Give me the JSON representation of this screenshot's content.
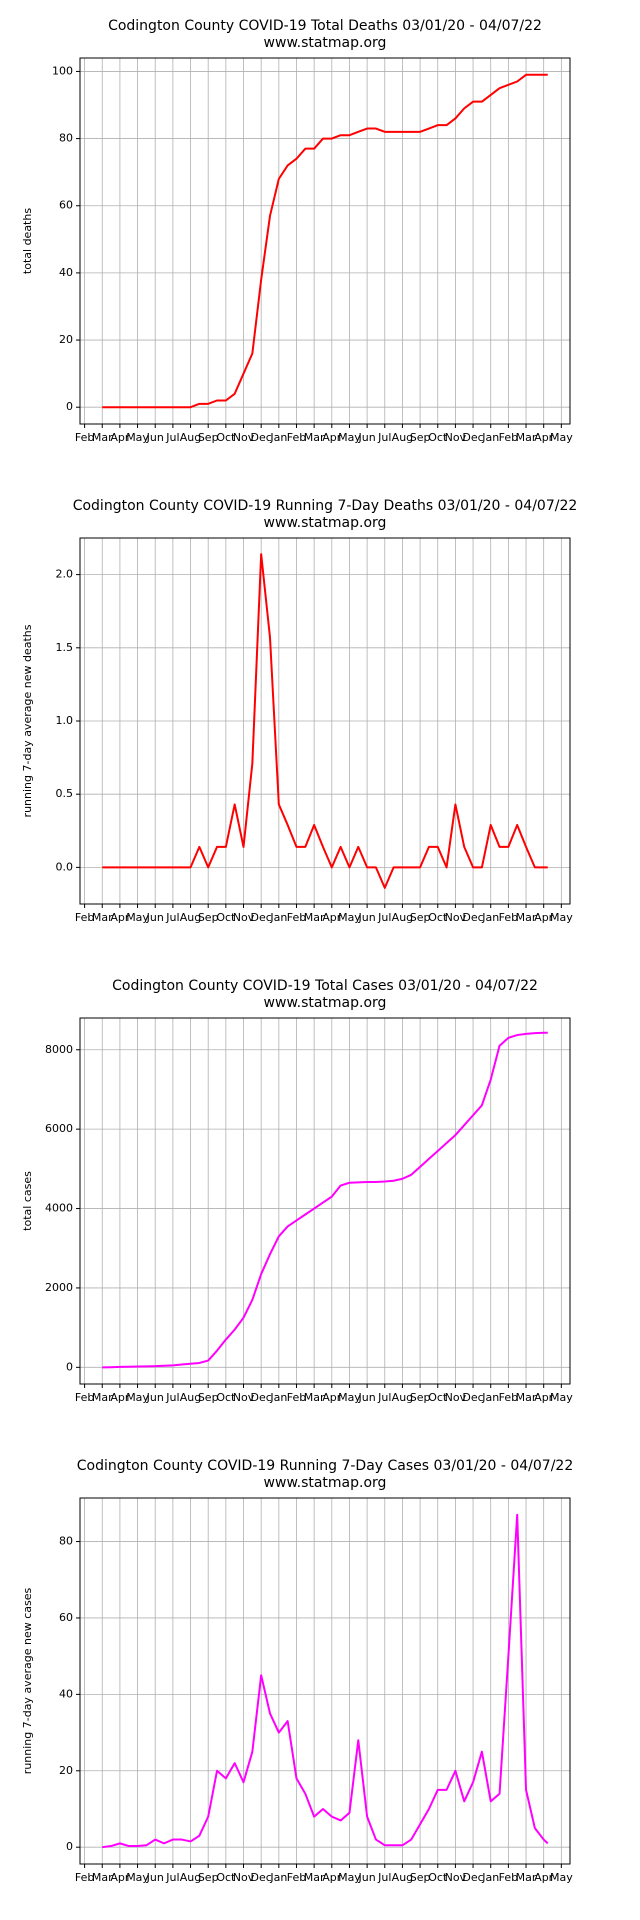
{
  "chart_data": [
    {
      "type": "line",
      "title": "Codington County COVID-19 Total Deaths 03/01/20 - 04/07/22",
      "subtitle": "www.statmap.org",
      "y_label": "total deaths",
      "grid": true,
      "xlim": [
        -0.26,
        27.49
      ],
      "ylim": [
        -5,
        104
      ],
      "yticks": [
        0,
        20,
        40,
        60,
        80,
        100
      ],
      "xticks": [
        {
          "value": 0,
          "label": "Feb"
        },
        {
          "value": 1,
          "label": "Mar"
        },
        {
          "value": 2,
          "label": "Apr"
        },
        {
          "value": 3,
          "label": "May"
        },
        {
          "value": 4,
          "label": "Jun"
        },
        {
          "value": 5,
          "label": "Jul"
        },
        {
          "value": 6,
          "label": "Aug"
        },
        {
          "value": 7,
          "label": "Sep"
        },
        {
          "value": 8,
          "label": "Oct"
        },
        {
          "value": 9,
          "label": "Nov"
        },
        {
          "value": 10,
          "label": "Dec"
        },
        {
          "value": 11,
          "label": "Jan"
        },
        {
          "value": 12,
          "label": "Feb"
        },
        {
          "value": 13,
          "label": "Mar"
        },
        {
          "value": 14,
          "label": "Apr"
        },
        {
          "value": 15,
          "label": "May"
        },
        {
          "value": 16,
          "label": "Jun"
        },
        {
          "value": 17,
          "label": "Jul"
        },
        {
          "value": 18,
          "label": "Aug"
        },
        {
          "value": 19,
          "label": "Sep"
        },
        {
          "value": 20,
          "label": "Oct"
        },
        {
          "value": 21,
          "label": "Nov"
        },
        {
          "value": 22,
          "label": "Dec"
        },
        {
          "value": 23,
          "label": "Jan"
        },
        {
          "value": 24,
          "label": "Feb"
        },
        {
          "value": 25,
          "label": "Mar"
        },
        {
          "value": 26,
          "label": "Apr"
        },
        {
          "value": 27,
          "label": "May"
        }
      ],
      "x": [
        1,
        1.5,
        2,
        2.5,
        3,
        3.5,
        4,
        4.5,
        5,
        5.5,
        6,
        6.5,
        7,
        7.5,
        8,
        8.5,
        9,
        9.5,
        10,
        10.5,
        11,
        11.5,
        12,
        12.5,
        13,
        13.5,
        14,
        14.5,
        15,
        15.5,
        16,
        16.5,
        17,
        17.5,
        18,
        18.5,
        19,
        19.5,
        20,
        20.5,
        21,
        21.5,
        22,
        22.5,
        23,
        23.5,
        24,
        24.5,
        25,
        25.5,
        26,
        26.23
      ],
      "color": "#ff0000",
      "values": [
        0,
        0,
        0,
        0,
        0,
        0,
        0,
        0,
        0,
        0,
        0,
        1,
        1,
        2,
        2,
        4,
        10,
        16,
        38,
        57,
        68,
        72,
        74,
        77,
        77,
        80,
        80,
        81,
        81,
        82,
        83,
        83,
        82,
        82,
        82,
        82,
        82,
        83,
        84,
        84,
        86,
        89,
        91,
        91,
        93,
        95,
        96,
        97,
        99,
        99,
        99,
        99
      ]
    },
    {
      "type": "line",
      "title": "Codington County COVID-19 Running 7-Day Deaths 03/01/20 - 04/07/22",
      "subtitle": "www.statmap.org",
      "y_label": "running 7-day average new deaths",
      "grid": true,
      "xlim": [
        -0.26,
        27.49
      ],
      "ylim": [
        -0.25,
        2.25
      ],
      "yticks": [
        {
          "value": 0,
          "label": "0.0"
        },
        {
          "value": 0.5,
          "label": "0.5"
        },
        {
          "value": 1,
          "label": "1.0"
        },
        {
          "value": 1.5,
          "label": "1.5"
        },
        {
          "value": 2,
          "label": "2.0"
        }
      ],
      "xticks": [
        {
          "value": 0,
          "label": "Feb"
        },
        {
          "value": 1,
          "label": "Mar"
        },
        {
          "value": 2,
          "label": "Apr"
        },
        {
          "value": 3,
          "label": "May"
        },
        {
          "value": 4,
          "label": "Jun"
        },
        {
          "value": 5,
          "label": "Jul"
        },
        {
          "value": 6,
          "label": "Aug"
        },
        {
          "value": 7,
          "label": "Sep"
        },
        {
          "value": 8,
          "label": "Oct"
        },
        {
          "value": 9,
          "label": "Nov"
        },
        {
          "value": 10,
          "label": "Dec"
        },
        {
          "value": 11,
          "label": "Jan"
        },
        {
          "value": 12,
          "label": "Feb"
        },
        {
          "value": 13,
          "label": "Mar"
        },
        {
          "value": 14,
          "label": "Apr"
        },
        {
          "value": 15,
          "label": "May"
        },
        {
          "value": 16,
          "label": "Jun"
        },
        {
          "value": 17,
          "label": "Jul"
        },
        {
          "value": 18,
          "label": "Aug"
        },
        {
          "value": 19,
          "label": "Sep"
        },
        {
          "value": 20,
          "label": "Oct"
        },
        {
          "value": 21,
          "label": "Nov"
        },
        {
          "value": 22,
          "label": "Dec"
        },
        {
          "value": 23,
          "label": "Jan"
        },
        {
          "value": 24,
          "label": "Feb"
        },
        {
          "value": 25,
          "label": "Mar"
        },
        {
          "value": 26,
          "label": "Apr"
        },
        {
          "value": 27,
          "label": "May"
        }
      ],
      "x": [
        1,
        1.5,
        2,
        2.5,
        3,
        3.5,
        4,
        4.5,
        5,
        5.5,
        6,
        6.5,
        7,
        7.5,
        8,
        8.5,
        9,
        9.5,
        10,
        10.5,
        11,
        11.5,
        12,
        12.5,
        13,
        13.5,
        14,
        14.5,
        15,
        15.5,
        16,
        16.5,
        17,
        17.5,
        18,
        18.5,
        19,
        19.5,
        20,
        20.5,
        21,
        21.5,
        22,
        22.5,
        23,
        23.5,
        24,
        24.5,
        25,
        25.5,
        26,
        26.23
      ],
      "color": "#ff0000",
      "values": [
        0,
        0,
        0,
        0,
        0,
        0,
        0,
        0,
        0,
        0,
        0,
        0.14,
        0,
        0.14,
        0.14,
        0.43,
        0.14,
        0.71,
        2.14,
        1.57,
        0.43,
        0.29,
        0.14,
        0.14,
        0.29,
        0.14,
        0,
        0.14,
        0,
        0.14,
        0,
        0,
        -0.14,
        0,
        0,
        0,
        0,
        0.14,
        0.14,
        0,
        0.43,
        0.14,
        0,
        0,
        0.29,
        0.14,
        0.14,
        0.29,
        0.14,
        0,
        0,
        0
      ]
    },
    {
      "type": "line",
      "title": "Codington County COVID-19 Total Cases 03/01/20 - 04/07/22",
      "subtitle": "www.statmap.org",
      "y_label": "total cases",
      "grid": true,
      "xlim": [
        -0.26,
        27.49
      ],
      "ylim": [
        -420,
        8800
      ],
      "yticks": [
        0,
        2000,
        4000,
        6000,
        8000
      ],
      "xticks": [
        {
          "value": 0,
          "label": "Feb"
        },
        {
          "value": 1,
          "label": "Mar"
        },
        {
          "value": 2,
          "label": "Apr"
        },
        {
          "value": 3,
          "label": "May"
        },
        {
          "value": 4,
          "label": "Jun"
        },
        {
          "value": 5,
          "label": "Jul"
        },
        {
          "value": 6,
          "label": "Aug"
        },
        {
          "value": 7,
          "label": "Sep"
        },
        {
          "value": 8,
          "label": "Oct"
        },
        {
          "value": 9,
          "label": "Nov"
        },
        {
          "value": 10,
          "label": "Dec"
        },
        {
          "value": 11,
          "label": "Jan"
        },
        {
          "value": 12,
          "label": "Feb"
        },
        {
          "value": 13,
          "label": "Mar"
        },
        {
          "value": 14,
          "label": "Apr"
        },
        {
          "value": 15,
          "label": "May"
        },
        {
          "value": 16,
          "label": "Jun"
        },
        {
          "value": 17,
          "label": "Jul"
        },
        {
          "value": 18,
          "label": "Aug"
        },
        {
          "value": 19,
          "label": "Sep"
        },
        {
          "value": 20,
          "label": "Oct"
        },
        {
          "value": 21,
          "label": "Nov"
        },
        {
          "value": 22,
          "label": "Dec"
        },
        {
          "value": 23,
          "label": "Jan"
        },
        {
          "value": 24,
          "label": "Feb"
        },
        {
          "value": 25,
          "label": "Mar"
        },
        {
          "value": 26,
          "label": "Apr"
        },
        {
          "value": 27,
          "label": "May"
        }
      ],
      "x": [
        1,
        1.5,
        2,
        2.5,
        3,
        3.5,
        4,
        4.5,
        5,
        5.5,
        6,
        6.5,
        7,
        7.5,
        8,
        8.5,
        9,
        9.5,
        10,
        10.5,
        11,
        11.5,
        12,
        12.5,
        13,
        13.5,
        14,
        14.5,
        15,
        15.5,
        16,
        16.5,
        17,
        17.5,
        18,
        18.5,
        19,
        19.5,
        20,
        20.5,
        21,
        21.5,
        22,
        22.5,
        23,
        23.5,
        24,
        24.5,
        25,
        25.5,
        26,
        26.23
      ],
      "color": "#ff00ff",
      "values": [
        0,
        3,
        10,
        15,
        20,
        25,
        30,
        40,
        50,
        70,
        90,
        110,
        170,
        420,
        700,
        950,
        1250,
        1700,
        2350,
        2850,
        3300,
        3550,
        3700,
        3850,
        4000,
        4150,
        4300,
        4580,
        4650,
        4660,
        4670,
        4670,
        4680,
        4700,
        4750,
        4850,
        5050,
        5250,
        5450,
        5650,
        5850,
        6100,
        6350,
        6600,
        7250,
        8100,
        8300,
        8370,
        8400,
        8420,
        8430,
        8430
      ]
    },
    {
      "type": "line",
      "title": "Codington County COVID-19 Running 7-Day Cases 03/01/20 - 04/07/22",
      "subtitle": "www.statmap.org",
      "y_label": "running 7-day average new cases",
      "grid": true,
      "xlim": [
        -0.26,
        27.49
      ],
      "ylim": [
        -4.4,
        91.4
      ],
      "yticks": [
        0,
        20,
        40,
        60,
        80
      ],
      "xticks": [
        {
          "value": 0,
          "label": "Feb"
        },
        {
          "value": 1,
          "label": "Mar"
        },
        {
          "value": 2,
          "label": "Apr"
        },
        {
          "value": 3,
          "label": "May"
        },
        {
          "value": 4,
          "label": "Jun"
        },
        {
          "value": 5,
          "label": "Jul"
        },
        {
          "value": 6,
          "label": "Aug"
        },
        {
          "value": 7,
          "label": "Sep"
        },
        {
          "value": 8,
          "label": "Oct"
        },
        {
          "value": 9,
          "label": "Nov"
        },
        {
          "value": 10,
          "label": "Dec"
        },
        {
          "value": 11,
          "label": "Jan"
        },
        {
          "value": 12,
          "label": "Feb"
        },
        {
          "value": 13,
          "label": "Mar"
        },
        {
          "value": 14,
          "label": "Apr"
        },
        {
          "value": 15,
          "label": "May"
        },
        {
          "value": 16,
          "label": "Jun"
        },
        {
          "value": 17,
          "label": "Jul"
        },
        {
          "value": 18,
          "label": "Aug"
        },
        {
          "value": 19,
          "label": "Sep"
        },
        {
          "value": 20,
          "label": "Oct"
        },
        {
          "value": 21,
          "label": "Nov"
        },
        {
          "value": 22,
          "label": "Dec"
        },
        {
          "value": 23,
          "label": "Jan"
        },
        {
          "value": 24,
          "label": "Feb"
        },
        {
          "value": 25,
          "label": "Mar"
        },
        {
          "value": 26,
          "label": "Apr"
        },
        {
          "value": 27,
          "label": "May"
        }
      ],
      "x": [
        1,
        1.5,
        2,
        2.5,
        3,
        3.5,
        4,
        4.5,
        5,
        5.5,
        6,
        6.5,
        7,
        7.5,
        8,
        8.5,
        9,
        9.5,
        10,
        10.5,
        11,
        11.5,
        12,
        12.5,
        13,
        13.5,
        14,
        14.5,
        15,
        15.5,
        16,
        16.5,
        17,
        17.5,
        18,
        18.5,
        19,
        19.5,
        20,
        20.5,
        21,
        21.5,
        22,
        22.5,
        23,
        23.5,
        24,
        24.5,
        25,
        25.5,
        26,
        26.23
      ],
      "color": "#ff00ff",
      "values": [
        0,
        0.3,
        1,
        0.3,
        0.3,
        0.5,
        2,
        1,
        2,
        2,
        1.5,
        3,
        8,
        20,
        18,
        22,
        17,
        25,
        45,
        35,
        30,
        33,
        18,
        14,
        8,
        10,
        8,
        7,
        9,
        28,
        8,
        2,
        0.5,
        0.5,
        0.5,
        2,
        6,
        10,
        15,
        15,
        20,
        12,
        17,
        25,
        12,
        14,
        50,
        87,
        15,
        5,
        2,
        1
      ]
    }
  ]
}
